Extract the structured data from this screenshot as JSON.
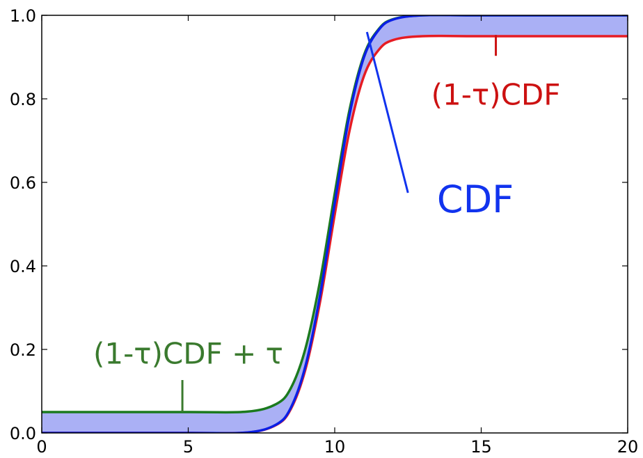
{
  "chart_data": {
    "type": "line",
    "title": "",
    "xlabel": "",
    "ylabel": "",
    "xlim": [
      0,
      20
    ],
    "ylim": [
      0,
      1.0
    ],
    "grid": false,
    "legend": "none",
    "tau": 0.05,
    "x_ticks": [
      0,
      5,
      10,
      15,
      20
    ],
    "x_tick_labels": [
      "0",
      "5",
      "10",
      "15",
      "20"
    ],
    "y_ticks": [
      0.0,
      0.2,
      0.4,
      0.6,
      0.8,
      1.0
    ],
    "y_tick_labels": [
      "0.0",
      "0.2",
      "0.4",
      "0.6",
      "0.8",
      "1.0"
    ],
    "series": [
      {
        "color": "#0a1fe6",
        "role": "cdf",
        "x": [
          0,
          5,
          7,
          8,
          8.5,
          9,
          9.5,
          10,
          10.5,
          11,
          11.5,
          12,
          13,
          15,
          20
        ],
        "values": [
          0.0,
          0.0,
          0.001,
          0.02,
          0.06,
          0.16,
          0.33,
          0.55,
          0.76,
          0.9,
          0.965,
          0.99,
          1.0,
          1.0,
          1.0
        ]
      },
      {
        "color": "#e61c24",
        "role": "lower-bound",
        "x": [
          0,
          5,
          7,
          8,
          8.5,
          9,
          9.5,
          10,
          10.5,
          11,
          11.5,
          12,
          13,
          15,
          20
        ],
        "values": [
          0.0,
          0.0,
          0.001,
          0.019,
          0.057,
          0.152,
          0.314,
          0.523,
          0.722,
          0.855,
          0.917,
          0.941,
          0.95,
          0.95,
          0.95
        ]
      },
      {
        "color": "#1b7a1e",
        "role": "upper-bound",
        "x": [
          0,
          5,
          7,
          8,
          8.5,
          9,
          9.5,
          10,
          10.5,
          11,
          11.5,
          12,
          13,
          15,
          20
        ],
        "values": [
          0.05,
          0.05,
          0.051,
          0.069,
          0.107,
          0.202,
          0.364,
          0.573,
          0.772,
          0.905,
          0.967,
          0.991,
          1.0,
          1.0,
          1.0
        ]
      }
    ],
    "band": {
      "color": "#aab0f5",
      "between": [
        "upper-bound",
        "lower-bound"
      ]
    },
    "annotations": [
      {
        "text": "(1-τ)CDF",
        "color": "#cc1111",
        "anchor_x": 15.5,
        "anchor_y": 0.953,
        "label_x": 15.5,
        "label_y": 0.81
      },
      {
        "text": "CDF",
        "color": "#1133ee",
        "anchor_x": 11.1,
        "anchor_y": 0.96,
        "label_x": 14.8,
        "label_y": 0.56
      },
      {
        "text": "(1-τ)CDF + τ",
        "color": "#3a7a2e",
        "anchor_x": 4.8,
        "anchor_y": 0.05,
        "label_x": 5.0,
        "label_y": 0.19
      }
    ]
  }
}
